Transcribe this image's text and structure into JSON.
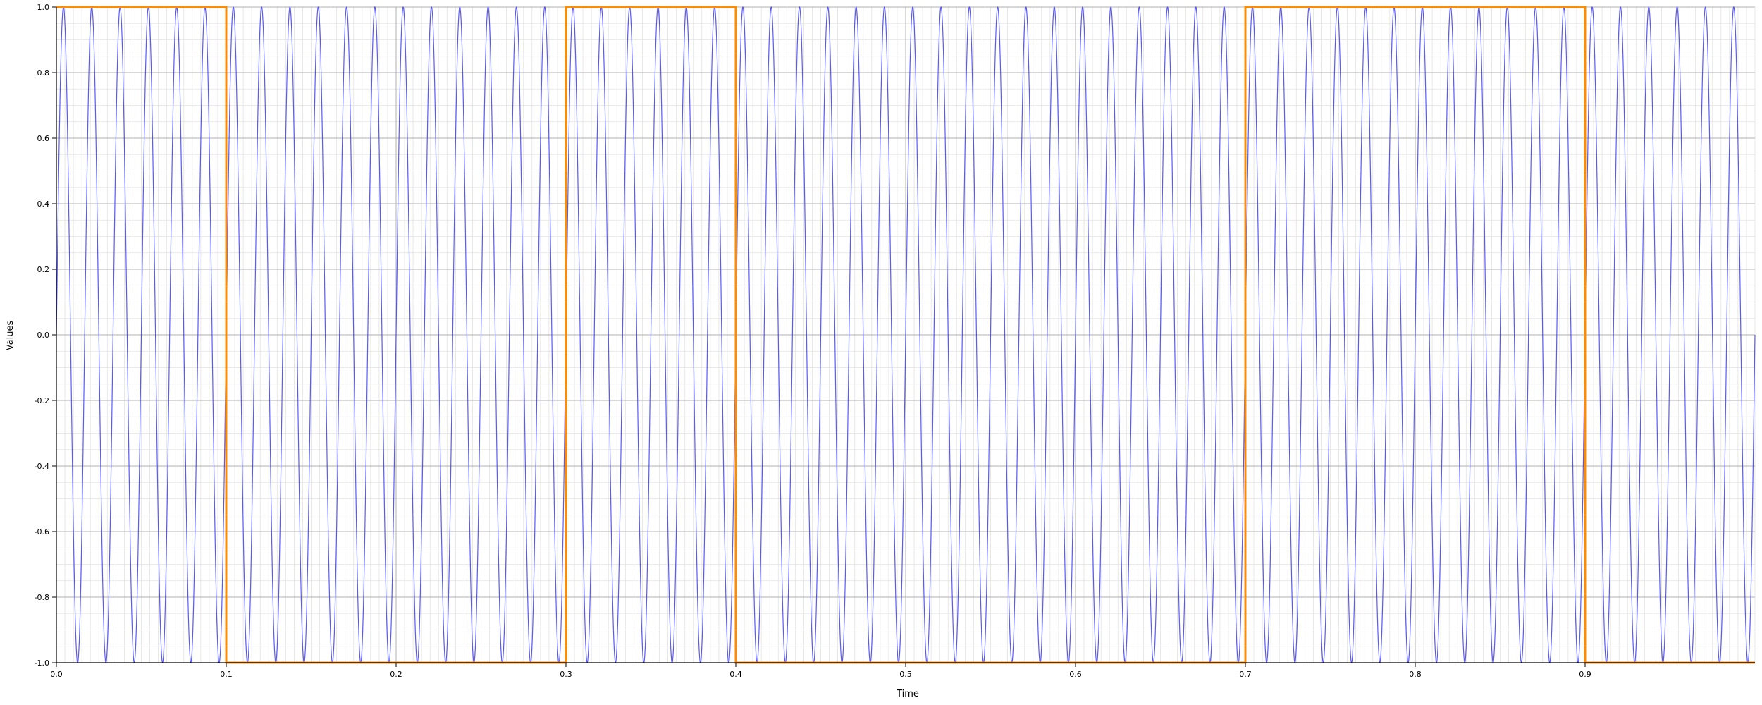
{
  "chart_data": {
    "type": "line",
    "title": "",
    "xlabel": "Time",
    "ylabel": "Values",
    "xlim": [
      0.0,
      1.0
    ],
    "ylim": [
      -1.0,
      1.0
    ],
    "x_ticks": [
      "0.0",
      "0.1",
      "0.2",
      "0.3",
      "0.4",
      "0.5",
      "0.6",
      "0.7",
      "0.8",
      "0.9"
    ],
    "x_tick_values": [
      0.0,
      0.1,
      0.2,
      0.3,
      0.4,
      0.5,
      0.6,
      0.7,
      0.8,
      0.9
    ],
    "y_ticks": [
      "-1.0",
      "-0.8",
      "-0.6",
      "-0.4",
      "-0.2",
      "0.0",
      "0.2",
      "0.4",
      "0.6",
      "0.8",
      "1.0"
    ],
    "y_tick_values": [
      -1.0,
      -0.8,
      -0.6,
      -0.4,
      -0.2,
      0.0,
      0.2,
      0.4,
      0.6,
      0.8,
      1.0
    ],
    "grid": true,
    "minor_grid": true,
    "legend": "none",
    "series": [
      {
        "kind": "sine",
        "frequency_hz": 60,
        "amplitude": 1.0,
        "color": "#3d3df5"
      },
      {
        "kind": "square",
        "transitions": [
          {
            "x": 0.0,
            "y": 1
          },
          {
            "x": 0.1,
            "y": -1
          },
          {
            "x": 0.3,
            "y": 1
          },
          {
            "x": 0.4,
            "y": -1
          },
          {
            "x": 0.7,
            "y": 1
          },
          {
            "x": 0.9,
            "y": -1
          },
          {
            "x": 1.0,
            "y": -1
          }
        ],
        "color": "#ff8c00"
      }
    ]
  }
}
